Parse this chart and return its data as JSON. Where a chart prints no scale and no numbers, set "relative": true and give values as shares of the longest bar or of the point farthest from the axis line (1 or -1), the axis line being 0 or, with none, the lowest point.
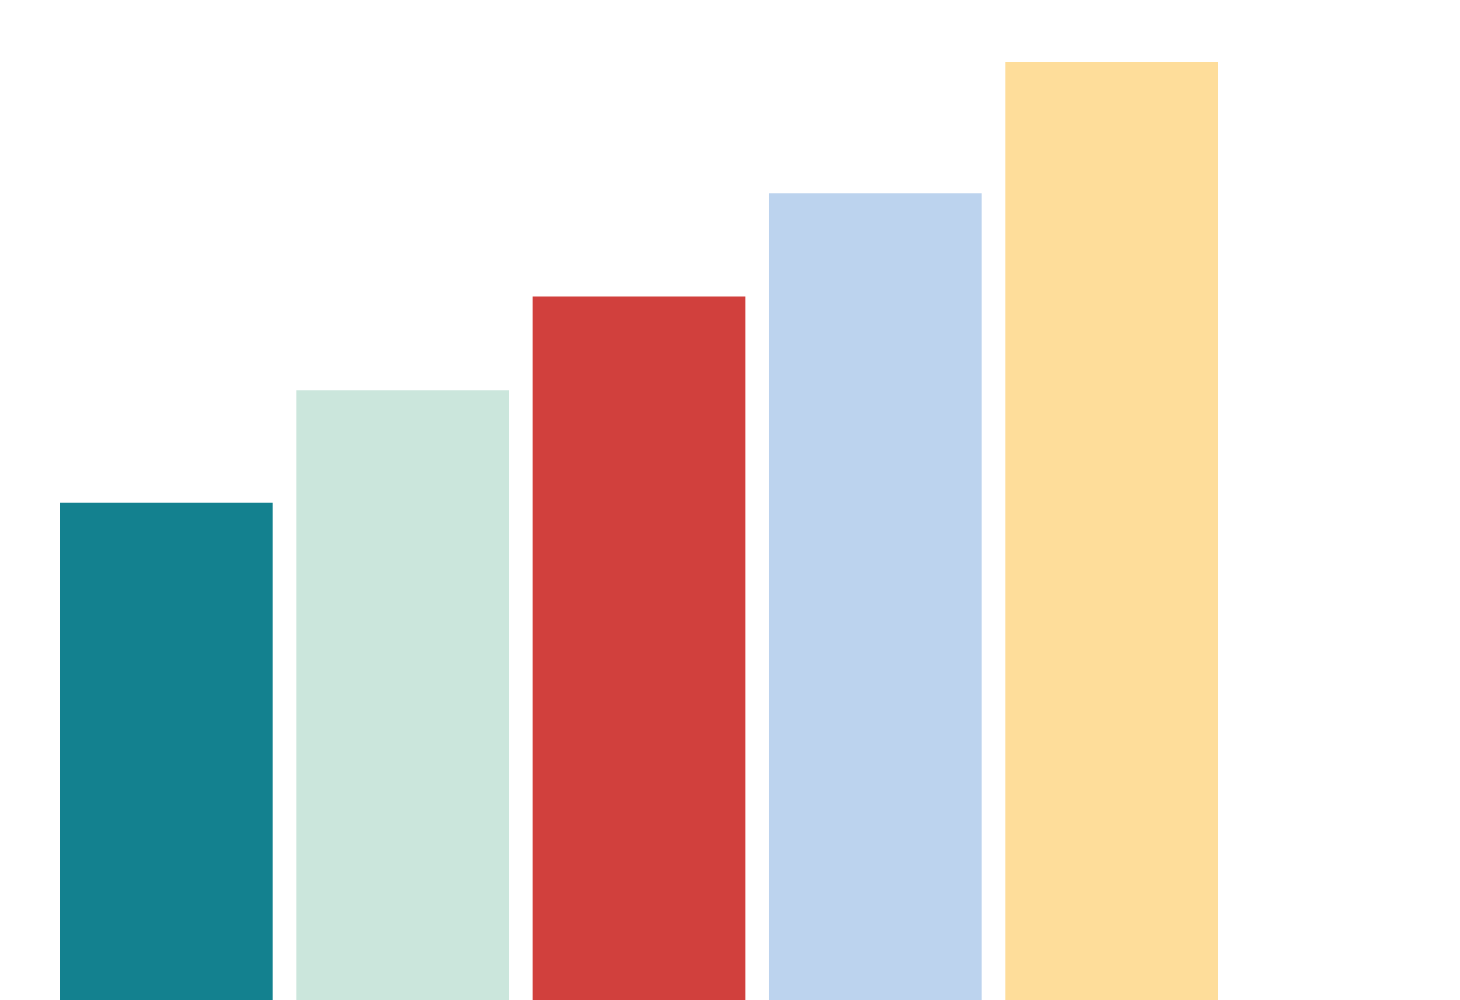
{
  "chart_data": {
    "type": "bar",
    "relative": true,
    "categories": [
      null,
      null,
      null,
      null,
      null
    ],
    "values": [
      0.53,
      0.65,
      0.75,
      0.86,
      1
    ],
    "colors": [
      "#13818f",
      "#cbe6dc",
      "#d1403d",
      "#bcd3ee",
      "#fedd9a"
    ]
  }
}
